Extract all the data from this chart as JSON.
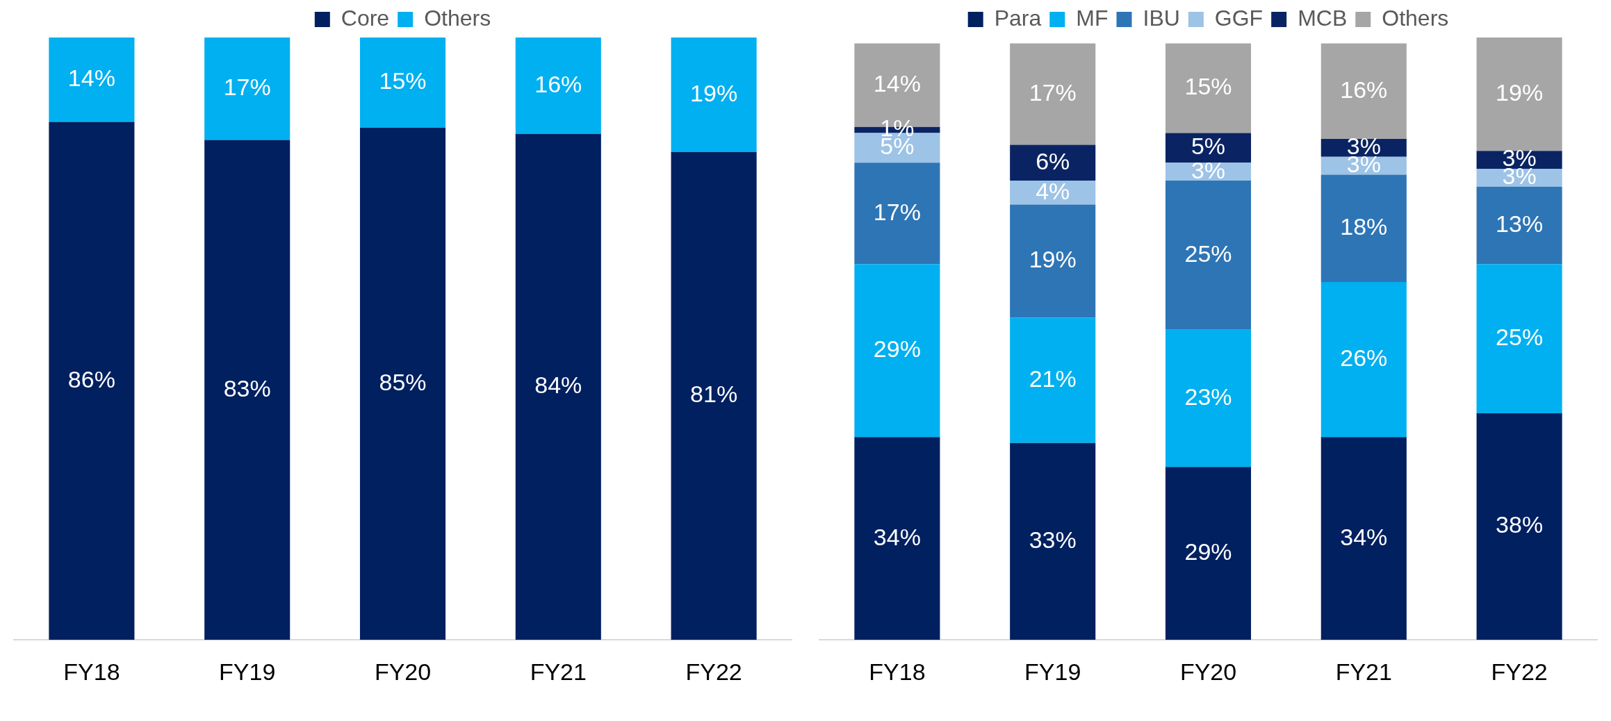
{
  "chart_data": [
    {
      "type": "bar",
      "stacked": true,
      "categories": [
        "FY18",
        "FY19",
        "FY20",
        "FY21",
        "FY22"
      ],
      "ylim": [
        0,
        100
      ],
      "tick_labels": "x",
      "grid": false,
      "legend": "top",
      "series": [
        {
          "name": "Core",
          "color": "#002060",
          "values": [
            86,
            83,
            85,
            84,
            81
          ],
          "value_labels": [
            "86%",
            "83%",
            "85%",
            "84%",
            "81%"
          ]
        },
        {
          "name": "Others",
          "color": "#00b0f0",
          "values": [
            14,
            17,
            15,
            16,
            19
          ],
          "value_labels": [
            "14%",
            "17%",
            "15%",
            "16%",
            "19%"
          ]
        }
      ]
    },
    {
      "type": "bar",
      "stacked": true,
      "categories": [
        "FY18",
        "FY19",
        "FY20",
        "FY21",
        "FY22"
      ],
      "ylim": [
        0,
        101
      ],
      "tick_labels": "x",
      "grid": false,
      "legend": "top",
      "series": [
        {
          "name": "Para",
          "color": "#002060",
          "values": [
            34,
            33,
            29,
            34,
            38
          ],
          "value_labels": [
            "34%",
            "33%",
            "29%",
            "34%",
            "38%"
          ]
        },
        {
          "name": "MF",
          "color": "#00b0f0",
          "values": [
            29,
            21,
            23,
            26,
            25
          ],
          "value_labels": [
            "29%",
            "21%",
            "23%",
            "26%",
            "25%"
          ]
        },
        {
          "name": "IBU",
          "color": "#2e75b6",
          "values": [
            17,
            19,
            25,
            18,
            13
          ],
          "value_labels": [
            "17%",
            "19%",
            "25%",
            "18%",
            "13%"
          ]
        },
        {
          "name": "GGF",
          "color": "#9dc3e6",
          "values": [
            5,
            4,
            3,
            3,
            3
          ],
          "value_labels": [
            "5%",
            "4%",
            "3%",
            "3%",
            "3%"
          ]
        },
        {
          "name": "MCB",
          "color": "#0a2463",
          "values": [
            1,
            6,
            5,
            3,
            3
          ],
          "value_labels": [
            "1%",
            "6%",
            "5%",
            "3%",
            "3%"
          ]
        },
        {
          "name": "Others",
          "color": "#a6a6a6",
          "values": [
            14,
            17,
            15,
            16,
            19
          ],
          "value_labels": [
            "14%",
            "17%",
            "15%",
            "16%",
            "19%"
          ]
        }
      ]
    }
  ]
}
